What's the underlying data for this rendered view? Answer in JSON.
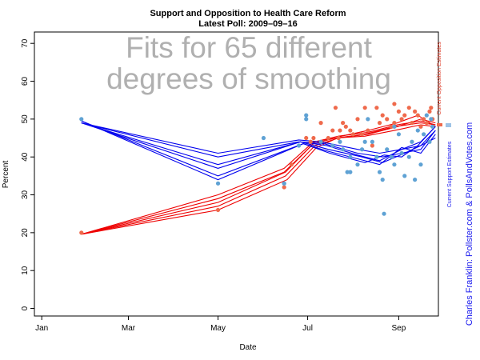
{
  "chart_data": {
    "type": "line",
    "title": "Support and Opposition to Health Care Reform",
    "subtitle": "Latest Poll: 2009–09–16",
    "xlabel": "Date",
    "ylabel": "Percent",
    "annotation_lines": [
      "Fits for 65 different",
      "degrees of smoothing"
    ],
    "ylim": [
      -2,
      73
    ],
    "yticks": [
      0,
      10,
      20,
      30,
      40,
      50,
      60,
      70
    ],
    "xlim": [
      -5,
      270
    ],
    "x_units": "days since 2009-01-01",
    "xticks": [
      {
        "label": "Jan",
        "value": 0
      },
      {
        "label": "Mar",
        "value": 59
      },
      {
        "label": "May",
        "value": 120
      },
      {
        "label": "Jul",
        "value": 181
      },
      {
        "label": "Sep",
        "value": 243
      }
    ],
    "grid": false,
    "side_labels": {
      "opposition": "Current Opposition Estimates",
      "support": "Current Support Estimates",
      "credit": "Charles Franklin: Pollster.com & PollsAndVotes.com"
    },
    "colors": {
      "support_line": "#0000ee",
      "opposition_line": "#ee0000",
      "support_point": "#5fa2d4",
      "opposition_point": "#ef6a4c",
      "overlay_text": "#b0b0b0"
    },
    "series": [
      {
        "name": "Support",
        "points": [
          [
            27,
            50
          ],
          [
            120,
            33
          ],
          [
            151,
            45
          ],
          [
            165,
            33
          ],
          [
            165,
            33
          ],
          [
            175,
            43
          ],
          [
            180,
            51
          ],
          [
            180,
            50
          ],
          [
            190,
            44
          ],
          [
            198,
            43
          ],
          [
            203,
            44
          ],
          [
            205,
            42
          ],
          [
            208,
            36
          ],
          [
            210,
            40
          ],
          [
            210,
            36
          ],
          [
            215,
            38
          ],
          [
            218,
            42
          ],
          [
            220,
            44
          ],
          [
            222,
            50
          ],
          [
            225,
            44
          ],
          [
            228,
            40
          ],
          [
            230,
            36
          ],
          [
            232,
            34
          ],
          [
            233,
            25
          ],
          [
            235,
            42
          ],
          [
            238,
            40
          ],
          [
            240,
            48
          ],
          [
            240,
            38
          ],
          [
            243,
            46
          ],
          [
            245,
            41
          ],
          [
            247,
            35
          ],
          [
            250,
            40
          ],
          [
            252,
            44
          ],
          [
            254,
            34
          ],
          [
            256,
            47
          ],
          [
            258,
            38
          ],
          [
            260,
            46
          ],
          [
            262,
            51
          ],
          [
            264,
            44
          ],
          [
            265,
            50
          ],
          [
            266,
            48
          ]
        ],
        "fits": [
          {
            "x": [
              27,
              120,
              175,
              190,
              215,
              230,
              245,
              258,
              268
            ],
            "y": [
              49,
              41,
              44.5,
              44,
              42,
              41,
              42,
              43,
              45
            ]
          },
          {
            "x": [
              27,
              120,
              175,
              192,
              215,
              232,
              245,
              258,
              268
            ],
            "y": [
              49,
              40,
              44,
              43.5,
              41,
              40,
              41,
              42,
              47
            ]
          },
          {
            "x": [
              27,
              120,
              176,
              194,
              215,
              230,
              245,
              258,
              268
            ],
            "y": [
              49,
              38,
              44,
              43,
              40.5,
              39,
              42,
              44,
              48
            ]
          },
          {
            "x": [
              27,
              120,
              176,
              195,
              218,
              232,
              247,
              258,
              268
            ],
            "y": [
              49,
              37,
              44,
              42,
              40,
              38.5,
              41,
              43,
              47
            ]
          },
          {
            "x": [
              27,
              120,
              178,
              195,
              220,
              230,
              245,
              258,
              268
            ],
            "y": [
              49.5,
              35,
              43.5,
              41.5,
              39,
              38,
              42.5,
              41,
              46
            ]
          },
          {
            "x": [
              27,
              120,
              178,
              196,
              220,
              233,
              245,
              256,
              268
            ],
            "y": [
              49.5,
              34,
              43.5,
              41,
              38.5,
              40.5,
              40,
              43,
              48
            ]
          }
        ]
      },
      {
        "name": "Opposition",
        "points": [
          [
            27,
            20
          ],
          [
            120,
            26
          ],
          [
            165,
            32
          ],
          [
            170,
            38
          ],
          [
            180,
            45
          ],
          [
            183,
            44
          ],
          [
            185,
            45
          ],
          [
            190,
            49
          ],
          [
            195,
            45
          ],
          [
            198,
            47
          ],
          [
            200,
            53
          ],
          [
            202,
            45
          ],
          [
            203,
            47
          ],
          [
            205,
            49
          ],
          [
            207,
            48
          ],
          [
            210,
            47
          ],
          [
            212,
            46
          ],
          [
            215,
            50
          ],
          [
            218,
            46
          ],
          [
            220,
            53
          ],
          [
            222,
            47
          ],
          [
            225,
            43
          ],
          [
            228,
            53
          ],
          [
            230,
            49
          ],
          [
            232,
            51
          ],
          [
            235,
            50
          ],
          [
            238,
            48
          ],
          [
            240,
            49
          ],
          [
            240,
            54
          ],
          [
            243,
            52
          ],
          [
            245,
            50
          ],
          [
            247,
            51
          ],
          [
            250,
            53
          ],
          [
            252,
            49
          ],
          [
            254,
            52
          ],
          [
            256,
            51
          ],
          [
            258,
            48
          ],
          [
            260,
            50
          ],
          [
            262,
            49
          ],
          [
            264,
            52
          ],
          [
            265,
            53
          ],
          [
            266,
            50
          ]
        ],
        "fits": [
          {
            "x": [
              27,
              120,
              165,
              185,
              200,
              220,
              240,
              258,
              268
            ],
            "y": [
              19.6,
              30,
              37,
              44,
              45,
              46,
              48,
              49,
              48.5
            ]
          },
          {
            "x": [
              27,
              120,
              165,
              185,
              200,
              220,
              240,
              258,
              268
            ],
            "y": [
              19.6,
              29,
              36,
              43.5,
              45,
              45.5,
              47,
              48.5,
              48
            ]
          },
          {
            "x": [
              27,
              120,
              166,
              186,
              202,
              222,
              242,
              258,
              268
            ],
            "y": [
              19.6,
              28,
              36,
              44,
              45.5,
              46.5,
              48.5,
              49.5,
              48.5
            ]
          },
          {
            "x": [
              27,
              120,
              166,
              186,
              202,
              222,
              242,
              258,
              268
            ],
            "y": [
              19.6,
              27,
              35,
              43,
              45,
              46,
              48,
              50,
              49
            ]
          },
          {
            "x": [
              27,
              120,
              167,
              187,
              204,
              222,
              242,
              256,
              268
            ],
            "y": [
              19.6,
              26,
              34,
              42.5,
              45.5,
              47,
              49,
              51,
              48
            ]
          }
        ]
      }
    ]
  }
}
